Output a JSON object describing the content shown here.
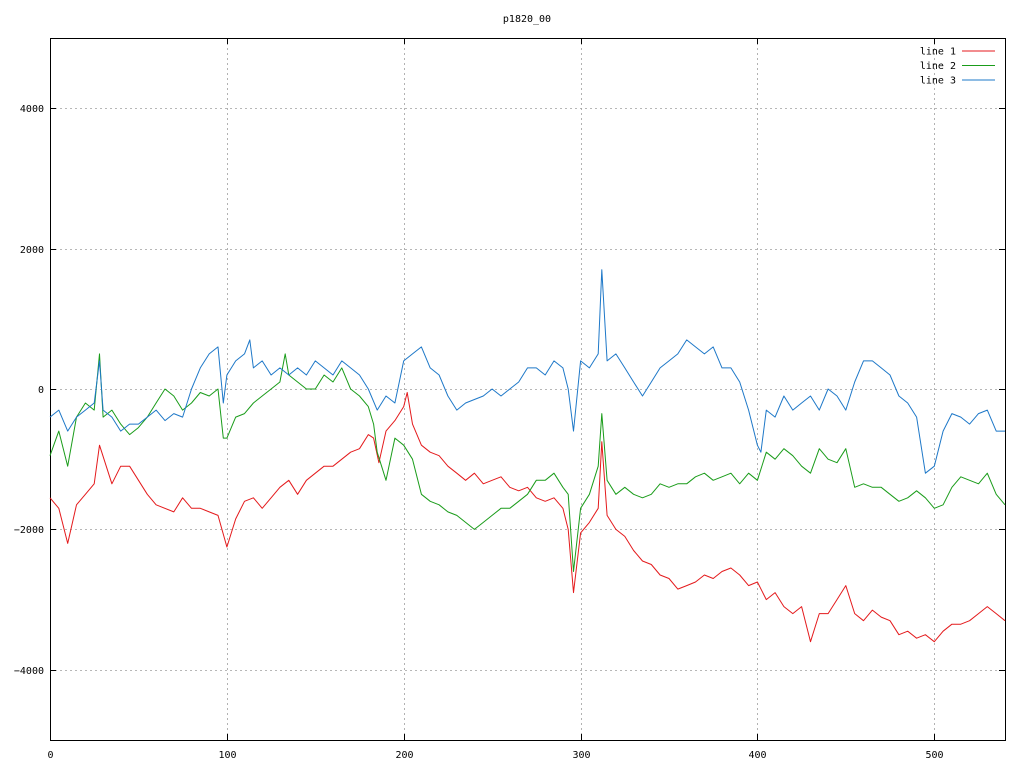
{
  "chart_data": {
    "type": "line",
    "title": "p1820_00",
    "xlabel": "",
    "ylabel": "",
    "xlim": [
      0,
      540
    ],
    "ylim": [
      -5000,
      5000
    ],
    "xticks": [
      0,
      100,
      200,
      300,
      400,
      500
    ],
    "yticks": [
      -4000,
      -2000,
      0,
      2000,
      4000
    ],
    "ytick_labels": [
      "−4000",
      "−2000",
      "0",
      "2000",
      "4000"
    ],
    "grid": true,
    "legend_position": "top-right",
    "series": [
      {
        "name": "line 1",
        "color": "#e41a1c",
        "x": [
          0,
          5,
          10,
          15,
          20,
          25,
          28,
          35,
          40,
          45,
          55,
          60,
          70,
          75,
          80,
          85,
          90,
          95,
          100,
          105,
          110,
          115,
          120,
          125,
          130,
          135,
          140,
          145,
          150,
          155,
          160,
          165,
          170,
          175,
          180,
          183,
          186,
          190,
          195,
          200,
          202,
          205,
          210,
          215,
          220,
          225,
          230,
          235,
          240,
          245,
          250,
          255,
          260,
          265,
          270,
          275,
          280,
          285,
          290,
          293,
          296,
          300,
          305,
          310,
          312,
          315,
          320,
          325,
          330,
          335,
          340,
          345,
          350,
          355,
          360,
          365,
          370,
          375,
          380,
          385,
          390,
          395,
          400,
          405,
          410,
          415,
          420,
          425,
          430,
          435,
          440,
          445,
          450,
          455,
          460,
          465,
          470,
          475,
          480,
          485,
          490,
          495,
          500,
          505,
          510,
          515,
          520,
          525,
          530,
          535,
          540
        ],
        "values": [
          -1550,
          -1700,
          -2200,
          -1650,
          -1500,
          -1350,
          -800,
          -1350,
          -1100,
          -1100,
          -1500,
          -1650,
          -1750,
          -1550,
          -1700,
          -1700,
          -1750,
          -1800,
          -2250,
          -1850,
          -1600,
          -1550,
          -1700,
          -1550,
          -1400,
          -1300,
          -1500,
          -1300,
          -1200,
          -1100,
          -1100,
          -1000,
          -900,
          -850,
          -650,
          -700,
          -1050,
          -600,
          -450,
          -250,
          -50,
          -500,
          -800,
          -900,
          -950,
          -1100,
          -1200,
          -1300,
          -1200,
          -1350,
          -1300,
          -1250,
          -1400,
          -1450,
          -1400,
          -1550,
          -1600,
          -1550,
          -1700,
          -2000,
          -2900,
          -2050,
          -1900,
          -1700,
          -750,
          -1800,
          -2000,
          -2100,
          -2300,
          -2450,
          -2500,
          -2650,
          -2700,
          -2850,
          -2800,
          -2750,
          -2650,
          -2700,
          -2600,
          -2550,
          -2650,
          -2800,
          -2750,
          -3000,
          -2900,
          -3100,
          -3200,
          -3100,
          -3600,
          -3200,
          -3200,
          -3000,
          -2800,
          -3200,
          -3300,
          -3150,
          -3250,
          -3300,
          -3500,
          -3450,
          -3550,
          -3500,
          -3600,
          -3450,
          -3350,
          -3350,
          -3300,
          -3200,
          -3100,
          -3200,
          -3300
        ]
      },
      {
        "name": "line 2",
        "color": "#1a9c1a",
        "x": [
          0,
          5,
          10,
          15,
          20,
          25,
          28,
          30,
          35,
          40,
          45,
          50,
          55,
          60,
          65,
          70,
          75,
          80,
          85,
          90,
          95,
          98,
          100,
          105,
          110,
          115,
          120,
          125,
          130,
          133,
          135,
          140,
          145,
          150,
          155,
          160,
          165,
          170,
          175,
          180,
          183,
          185,
          190,
          195,
          200,
          205,
          210,
          215,
          220,
          225,
          230,
          235,
          240,
          245,
          250,
          255,
          260,
          265,
          270,
          275,
          280,
          285,
          290,
          293,
          296,
          300,
          305,
          310,
          312,
          315,
          320,
          325,
          330,
          335,
          340,
          345,
          350,
          355,
          360,
          365,
          370,
          375,
          380,
          385,
          390,
          395,
          400,
          405,
          410,
          415,
          420,
          425,
          430,
          435,
          440,
          445,
          450,
          455,
          460,
          465,
          470,
          475,
          480,
          485,
          490,
          495,
          500,
          505,
          510,
          515,
          520,
          525,
          530,
          535,
          540
        ],
        "values": [
          -950,
          -600,
          -1100,
          -400,
          -200,
          -300,
          500,
          -400,
          -300,
          -500,
          -650,
          -550,
          -400,
          -200,
          0,
          -100,
          -300,
          -200,
          -50,
          -100,
          0,
          -700,
          -700,
          -400,
          -350,
          -200,
          -100,
          0,
          100,
          500,
          200,
          100,
          0,
          0,
          200,
          100,
          300,
          0,
          -100,
          -250,
          -500,
          -900,
          -1300,
          -700,
          -800,
          -1000,
          -1500,
          -1600,
          -1650,
          -1750,
          -1800,
          -1900,
          -2000,
          -1900,
          -1800,
          -1700,
          -1700,
          -1600,
          -1500,
          -1300,
          -1300,
          -1200,
          -1400,
          -1500,
          -2600,
          -1700,
          -1500,
          -1100,
          -350,
          -1300,
          -1500,
          -1400,
          -1500,
          -1550,
          -1500,
          -1350,
          -1400,
          -1350,
          -1350,
          -1250,
          -1200,
          -1300,
          -1250,
          -1200,
          -1350,
          -1200,
          -1300,
          -900,
          -1000,
          -850,
          -950,
          -1100,
          -1200,
          -850,
          -1000,
          -1050,
          -850,
          -1400,
          -1350,
          -1400,
          -1400,
          -1500,
          -1600,
          -1550,
          -1450,
          -1550,
          -1700,
          -1650,
          -1400,
          -1250,
          -1300,
          -1350,
          -1200,
          -1500,
          -1650
        ]
      },
      {
        "name": "line 3",
        "color": "#1e78c8",
        "x": [
          0,
          5,
          10,
          15,
          20,
          25,
          28,
          30,
          35,
          40,
          45,
          50,
          55,
          60,
          65,
          70,
          75,
          80,
          85,
          90,
          95,
          98,
          100,
          105,
          110,
          113,
          115,
          120,
          125,
          130,
          135,
          140,
          145,
          150,
          155,
          160,
          165,
          170,
          175,
          180,
          185,
          190,
          195,
          200,
          205,
          210,
          215,
          220,
          225,
          230,
          235,
          240,
          245,
          250,
          255,
          260,
          265,
          270,
          275,
          280,
          285,
          290,
          293,
          296,
          300,
          305,
          310,
          312,
          315,
          320,
          325,
          330,
          335,
          340,
          345,
          350,
          355,
          360,
          365,
          370,
          375,
          380,
          385,
          390,
          395,
          400,
          402,
          405,
          410,
          415,
          420,
          425,
          430,
          435,
          440,
          445,
          450,
          455,
          460,
          465,
          470,
          475,
          480,
          485,
          490,
          495,
          500,
          505,
          510,
          515,
          520,
          525,
          530,
          535,
          540
        ],
        "values": [
          -400,
          -300,
          -600,
          -400,
          -300,
          -200,
          400,
          -300,
          -400,
          -600,
          -500,
          -500,
          -400,
          -300,
          -450,
          -350,
          -400,
          0,
          300,
          500,
          600,
          -200,
          200,
          400,
          500,
          700,
          300,
          400,
          200,
          300,
          200,
          300,
          200,
          400,
          300,
          200,
          400,
          300,
          200,
          0,
          -300,
          -100,
          -200,
          400,
          500,
          600,
          300,
          200,
          -100,
          -300,
          -200,
          -150,
          -100,
          0,
          -100,
          0,
          100,
          300,
          300,
          200,
          400,
          300,
          0,
          -600,
          400,
          300,
          500,
          1700,
          400,
          500,
          300,
          100,
          -100,
          100,
          300,
          400,
          500,
          700,
          600,
          500,
          600,
          300,
          300,
          100,
          -300,
          -800,
          -900,
          -300,
          -400,
          -100,
          -300,
          -200,
          -100,
          -300,
          0,
          -100,
          -300,
          100,
          400,
          400,
          300,
          200,
          -100,
          -200,
          -400,
          -1200,
          -1100,
          -600,
          -350,
          -400,
          -500,
          -350,
          -300,
          -600,
          -600
        ]
      }
    ]
  }
}
